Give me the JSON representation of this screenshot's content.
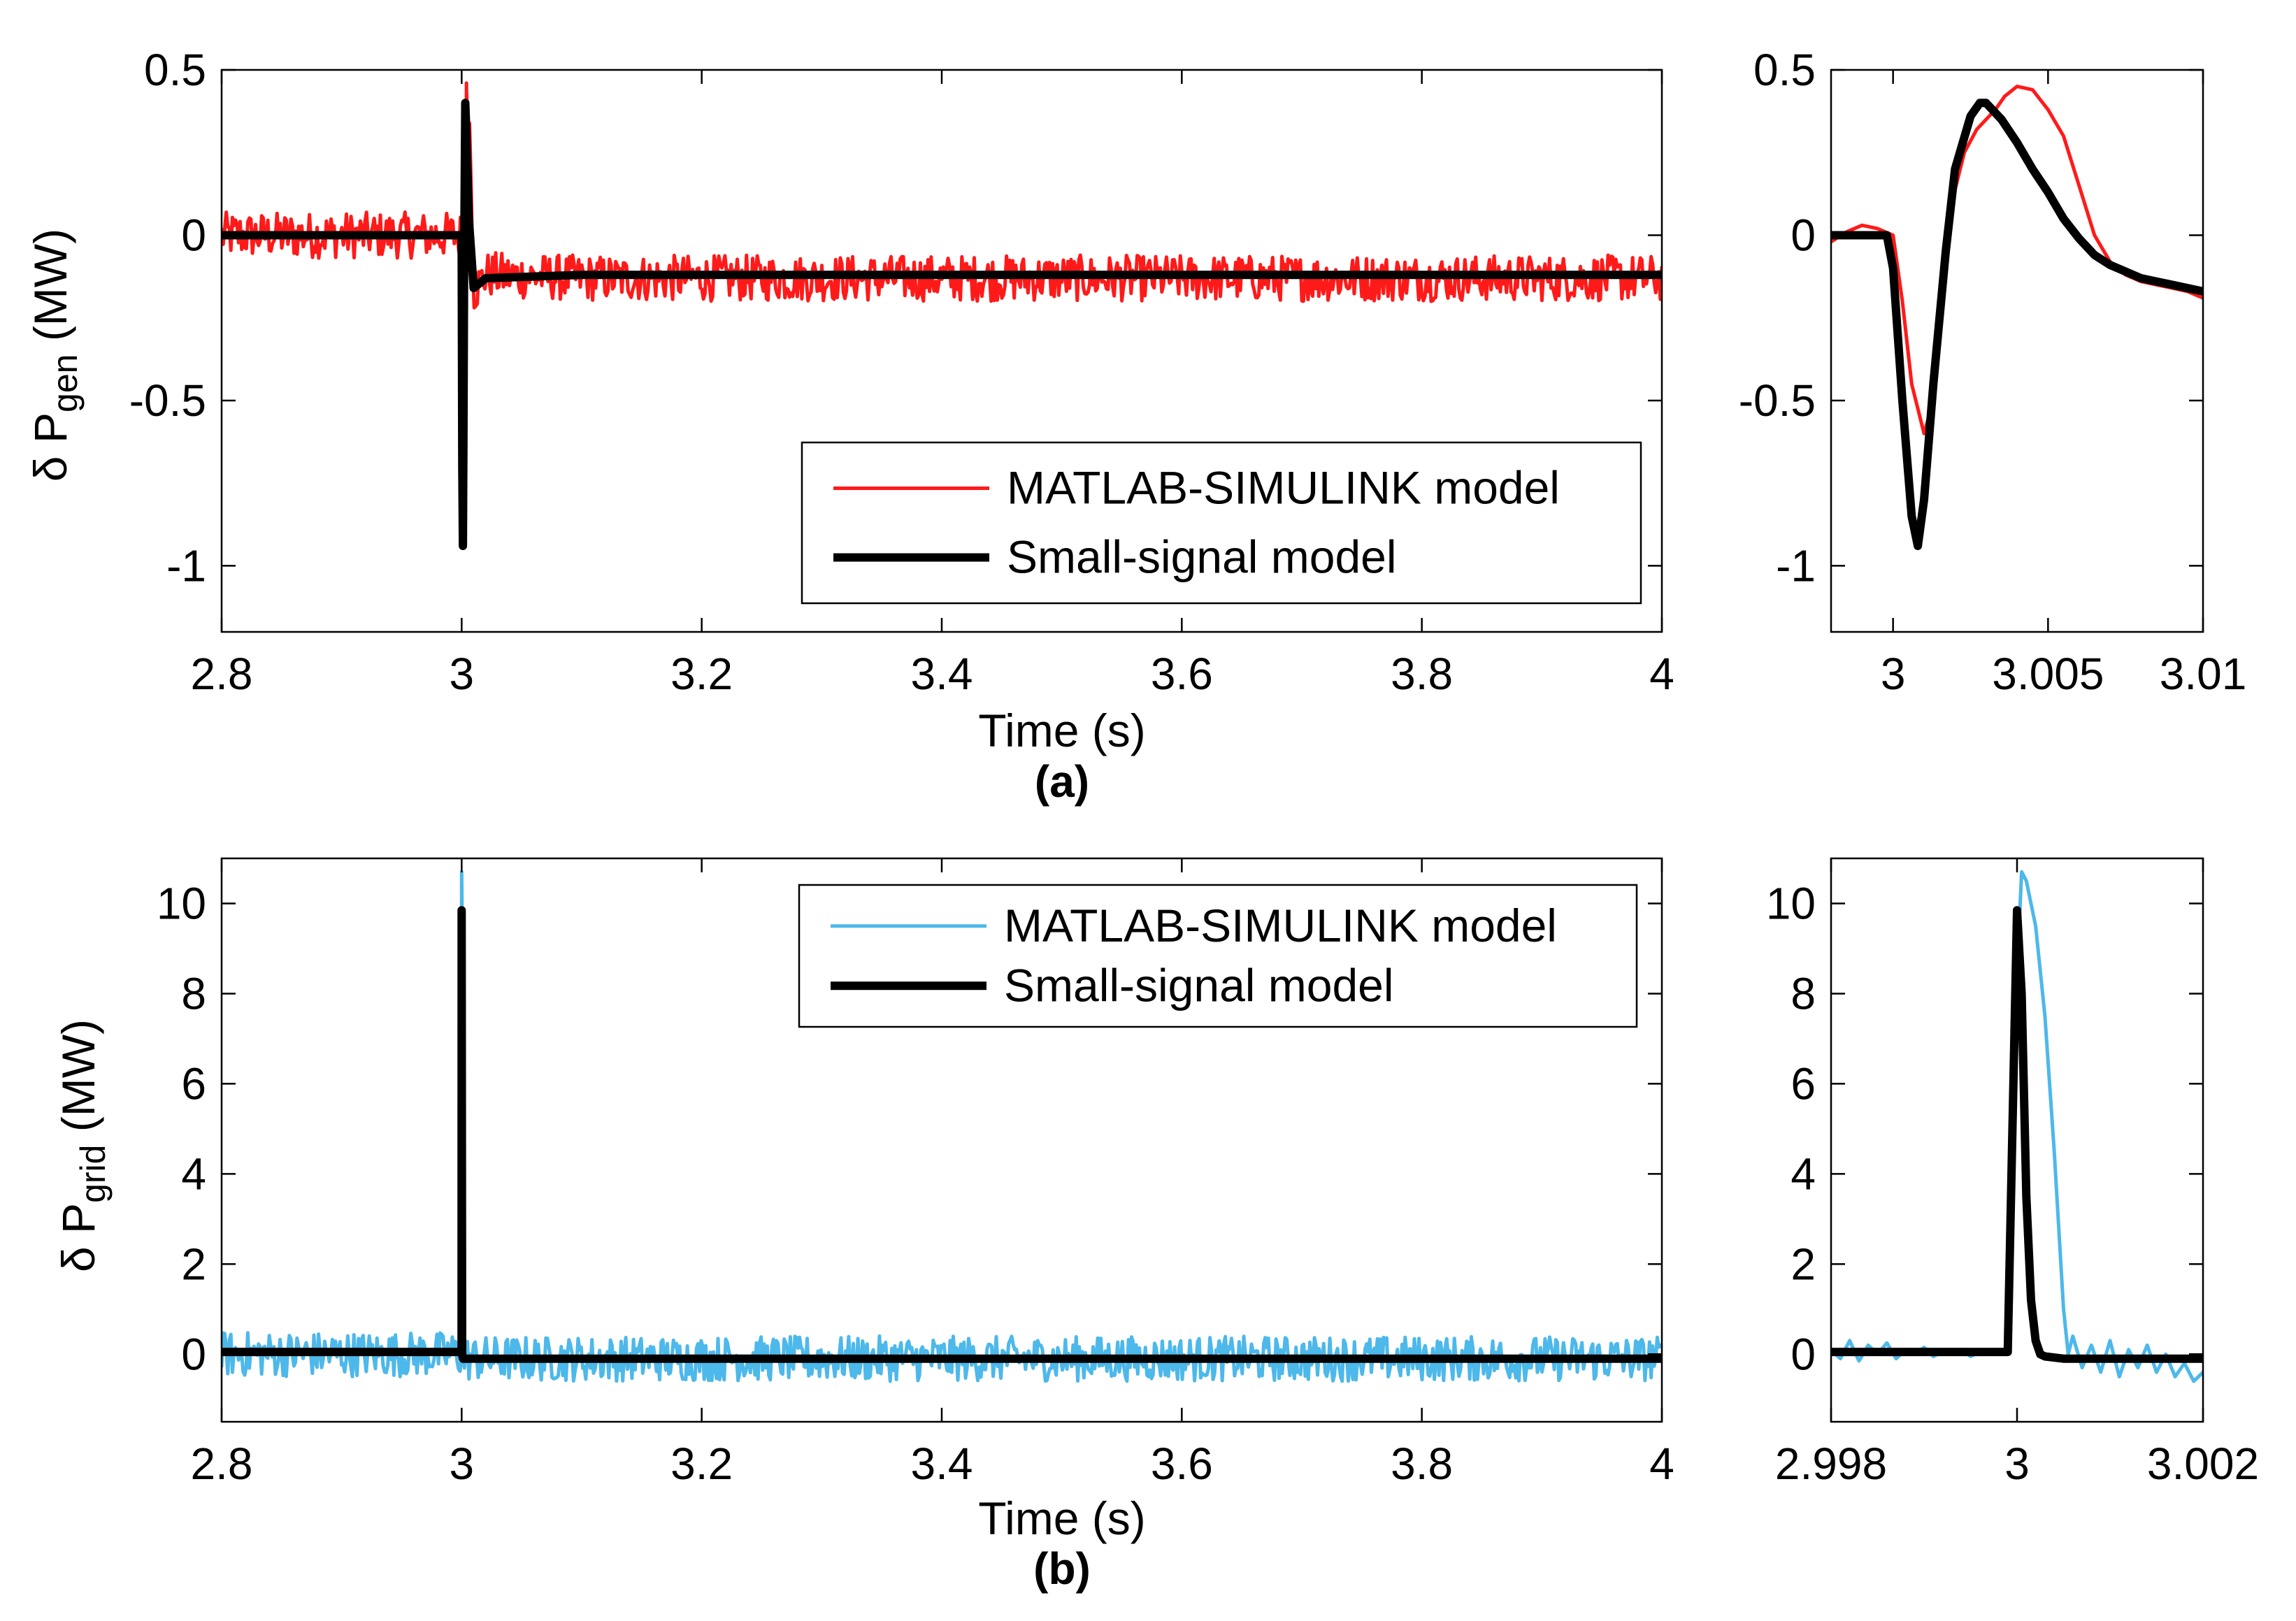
{
  "figure": {
    "panel_a_label": "(a)",
    "panel_b_label": "(b)"
  },
  "colors": {
    "red": "#ff1a1a",
    "blue": "#4db8ea",
    "black": "#000000"
  },
  "chart_data": [
    {
      "id": "a-main",
      "type": "line",
      "title": "",
      "xlabel": "Time (s)",
      "ylabel": {
        "prefix": "δ P",
        "sub": "gen",
        "suffix": " (MW)"
      },
      "xlim": [
        2.8,
        4.0
      ],
      "ylim": [
        -1.2,
        0.5
      ],
      "xticks": [
        2.8,
        3.0,
        3.2,
        3.4,
        3.6,
        3.8,
        4.0
      ],
      "xtick_labels": [
        "2.8",
        "3",
        "3.2",
        "3.4",
        "3.6",
        "3.8",
        "4"
      ],
      "yticks": [
        0.5,
        0,
        -0.5,
        -1
      ],
      "ytick_labels": [
        "0.5",
        "0",
        "-0.5",
        "-1"
      ],
      "grid": false,
      "legend_position": "bottom-right",
      "legend": [
        "MATLAB-SIMULINK model",
        "Small-signal model"
      ],
      "series": [
        {
          "name": "MATLAB-SIMULINK model",
          "color": "#ff1a1a",
          "x": [
            2.8,
            2.9,
            2.999,
            3.0,
            3.0015,
            3.003,
            3.004,
            3.007,
            3.01,
            3.02,
            3.1,
            3.5,
            4.0
          ],
          "y": [
            0.0,
            0.0,
            0.0,
            0.0,
            -0.45,
            -0.55,
            0.46,
            0.3,
            -0.17,
            -0.12,
            -0.13,
            -0.13,
            -0.13
          ],
          "noise_amplitude": 0.07
        },
        {
          "name": "Small-signal model",
          "color": "#000000",
          "x": [
            2.8,
            2.9,
            3.0,
            3.0005,
            3.001,
            3.0015,
            3.002,
            3.003,
            3.004,
            3.006,
            3.01,
            3.02,
            3.1,
            3.5,
            4.0
          ],
          "y": [
            0.0,
            0.0,
            0.0,
            -0.7,
            -0.94,
            -0.6,
            -0.1,
            0.4,
            0.3,
            0.05,
            -0.16,
            -0.13,
            -0.12,
            -0.12,
            -0.12
          ]
        }
      ]
    },
    {
      "id": "a-zoom",
      "type": "line",
      "title": "",
      "xlabel": "",
      "ylabel": "",
      "xlim": [
        2.998,
        3.01
      ],
      "ylim": [
        -1.2,
        0.5
      ],
      "xticks": [
        3.0,
        3.005,
        3.01
      ],
      "xtick_labels": [
        "3",
        "3.005",
        "3.01"
      ],
      "yticks": [
        0.5,
        0,
        -0.5,
        -1
      ],
      "ytick_labels": [
        "0.5",
        "0",
        "-0.5",
        "-1"
      ],
      "grid": false,
      "series": [
        {
          "name": "MATLAB-SIMULINK model",
          "color": "#ff1a1a",
          "x": [
            2.998,
            2.9985,
            2.999,
            2.9995,
            3.0,
            3.0003,
            3.0006,
            3.001,
            3.0013,
            3.0016,
            3.0019,
            3.0023,
            3.0027,
            3.003,
            3.0033,
            3.0036,
            3.004,
            3.0045,
            3.005,
            3.0055,
            3.006,
            3.0065,
            3.007,
            3.0075,
            3.008,
            3.0085,
            3.009,
            3.0095,
            3.01
          ],
          "y": [
            -0.02,
            0.01,
            0.03,
            0.02,
            0.0,
            -0.2,
            -0.45,
            -0.6,
            -0.5,
            -0.15,
            0.1,
            0.25,
            0.32,
            0.35,
            0.38,
            0.42,
            0.45,
            0.44,
            0.38,
            0.3,
            0.15,
            0.0,
            -0.08,
            -0.12,
            -0.14,
            -0.15,
            -0.16,
            -0.17,
            -0.19
          ]
        },
        {
          "name": "Small-signal model",
          "color": "#000000",
          "x": [
            2.998,
            2.999,
            2.9998,
            3.0,
            3.0003,
            3.0006,
            3.0008,
            3.001,
            3.0013,
            3.0017,
            3.002,
            3.0025,
            3.0028,
            3.003,
            3.0035,
            3.004,
            3.0045,
            3.005,
            3.0055,
            3.006,
            3.0065,
            3.007,
            3.0075,
            3.008,
            3.0085,
            3.009,
            3.0095,
            3.01
          ],
          "y": [
            0.0,
            0.0,
            0.0,
            -0.1,
            -0.5,
            -0.85,
            -0.94,
            -0.8,
            -0.45,
            -0.05,
            0.2,
            0.36,
            0.4,
            0.4,
            0.35,
            0.28,
            0.2,
            0.13,
            0.05,
            -0.01,
            -0.06,
            -0.09,
            -0.11,
            -0.13,
            -0.14,
            -0.15,
            -0.16,
            -0.17
          ]
        }
      ]
    },
    {
      "id": "b-main",
      "type": "line",
      "title": "",
      "xlabel": "Time (s)",
      "ylabel": {
        "prefix": "δ P",
        "sub": "grid",
        "suffix": " (MW)"
      },
      "xlim": [
        2.8,
        4.0
      ],
      "ylim": [
        -1.5,
        11
      ],
      "xticks": [
        2.8,
        3.0,
        3.2,
        3.4,
        3.6,
        3.8,
        4.0
      ],
      "xtick_labels": [
        "2.8",
        "3",
        "3.2",
        "3.4",
        "3.6",
        "3.8",
        "4"
      ],
      "yticks": [
        10,
        8,
        6,
        4,
        2,
        0
      ],
      "ytick_labels": [
        "10",
        "8",
        "6",
        "4",
        "2",
        "0"
      ],
      "grid": false,
      "legend_position": "top-right",
      "legend": [
        "MATLAB-SIMULINK model",
        "Small-signal model"
      ],
      "series": [
        {
          "name": "MATLAB-SIMULINK model",
          "color": "#4db8ea",
          "x": [
            2.8,
            2.9,
            2.9999,
            3.0,
            3.0003,
            3.0006,
            3.001,
            3.1,
            3.5,
            4.0
          ],
          "y": [
            0.0,
            0.0,
            0.0,
            10.7,
            10.0,
            0.0,
            -0.1,
            -0.1,
            -0.1,
            -0.1
          ],
          "noise_amplitude": 0.5
        },
        {
          "name": "Small-signal model",
          "color": "#000000",
          "x": [
            2.8,
            2.9,
            2.9999,
            3.0,
            3.0002,
            3.0004,
            3.001,
            3.1,
            3.5,
            4.0
          ],
          "y": [
            0.05,
            0.05,
            0.05,
            9.85,
            4.0,
            0.0,
            -0.1,
            -0.1,
            -0.1,
            -0.1
          ]
        }
      ]
    },
    {
      "id": "b-zoom",
      "type": "line",
      "title": "",
      "xlabel": "",
      "ylabel": "",
      "xlim": [
        2.998,
        3.002
      ],
      "ylim": [
        -1.5,
        11
      ],
      "xticks": [
        2.998,
        3.0,
        3.002
      ],
      "xtick_labels": [
        "2.998",
        "3",
        "3.002"
      ],
      "yticks": [
        10,
        8,
        6,
        4,
        2,
        0
      ],
      "ytick_labels": [
        "10",
        "8",
        "6",
        "4",
        "2",
        "0"
      ],
      "grid": false,
      "series": [
        {
          "name": "MATLAB-SIMULINK model",
          "color": "#4db8ea",
          "x": [
            2.998,
            2.9981,
            2.9982,
            2.9983,
            2.9984,
            2.9985,
            2.9986,
            2.9987,
            2.9988,
            2.9989,
            2.999,
            2.9991,
            2.9992,
            2.9993,
            2.9994,
            2.9995,
            2.9996,
            2.9997,
            2.9998,
            2.9999,
            3.0,
            3.00005,
            3.0001,
            3.0002,
            3.0003,
            3.0004,
            3.0005,
            3.00055,
            3.0006,
            3.0007,
            3.0008,
            3.0009,
            3.001,
            3.0011,
            3.0012,
            3.0013,
            3.0014,
            3.0015,
            3.0016,
            3.0017,
            3.0018,
            3.0019,
            3.002
          ],
          "y": [
            0.1,
            -0.1,
            0.3,
            -0.15,
            0.2,
            0.0,
            0.25,
            -0.1,
            0.1,
            0.0,
            0.15,
            -0.05,
            0.05,
            0.0,
            0.1,
            -0.05,
            0.05,
            0.0,
            0.05,
            0.0,
            8.5,
            10.7,
            10.5,
            9.5,
            7.5,
            4.5,
            1.0,
            0.0,
            0.4,
            -0.3,
            0.2,
            -0.4,
            0.3,
            -0.5,
            0.1,
            -0.3,
            0.2,
            -0.4,
            0.0,
            -0.5,
            -0.2,
            -0.6,
            -0.4
          ],
          "noise_amplitude": 0.0
        },
        {
          "name": "Small-signal model",
          "color": "#000000",
          "x": [
            2.998,
            2.999,
            2.9999,
            3.0,
            3.00005,
            3.0001,
            3.00015,
            3.0002,
            3.00025,
            3.0003,
            3.0005,
            3.001,
            3.002
          ],
          "y": [
            0.05,
            0.05,
            0.05,
            9.85,
            8.0,
            3.5,
            1.2,
            0.3,
            0.0,
            -0.05,
            -0.1,
            -0.1,
            -0.1
          ]
        }
      ]
    }
  ]
}
